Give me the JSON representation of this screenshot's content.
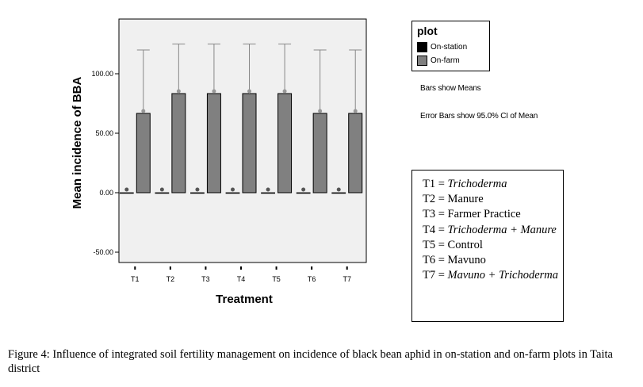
{
  "chart_data": {
    "type": "bar",
    "categories": [
      "T1",
      "T2",
      "T3",
      "T4",
      "T5",
      "T6",
      "T7"
    ],
    "series": [
      {
        "name": "On-station",
        "values": [
          0,
          0,
          0,
          0,
          0,
          0,
          0
        ],
        "error_upper": [
          0,
          0,
          0,
          0,
          0,
          0,
          0
        ]
      },
      {
        "name": "On-farm",
        "values": [
          66.67,
          83.33,
          83.33,
          83.33,
          83.33,
          66.67,
          66.67
        ],
        "error_upper": [
          120,
          125,
          125,
          125,
          125,
          120,
          120
        ]
      }
    ],
    "xlabel": "Treatment",
    "ylabel": "Mean incidence of BBA",
    "ylim": [
      -60,
      140
    ],
    "yticks": [
      -50,
      0,
      50,
      100
    ],
    "ytick_labels": [
      "-50.00",
      "0.00",
      "50.00",
      "100.00"
    ],
    "legend": {
      "title": "plot",
      "position": "right"
    },
    "colors": {
      "On-station": "#000000",
      "On-farm": "#808080",
      "plot_background": "#f0f0f0"
    }
  },
  "notes": {
    "bars": "Bars show Means",
    "error_bars": "Error Bars show 95.0% CI of Mean"
  },
  "key": [
    {
      "label": "T1 = ",
      "text": "Trichoderma",
      "italic": true
    },
    {
      "label": "T2 = ",
      "text": "Manure",
      "italic": false
    },
    {
      "label": "T3 = ",
      "text": "Farmer Practice",
      "italic": false
    },
    {
      "label": "T4 = ",
      "text": "Trichoderma + Manure",
      "italic": true
    },
    {
      "label": "T5 = ",
      "text": "Control",
      "italic": false
    },
    {
      "label": "T6 = ",
      "text": "Mavuno",
      "italic": false
    },
    {
      "label": "T7 = ",
      "text": "Mavuno + Trichoderma",
      "italic": true
    }
  ],
  "caption": "Figure 4: Influence of integrated soil fertility management on incidence of black bean aphid in on-station and on-farm plots in Taita district"
}
